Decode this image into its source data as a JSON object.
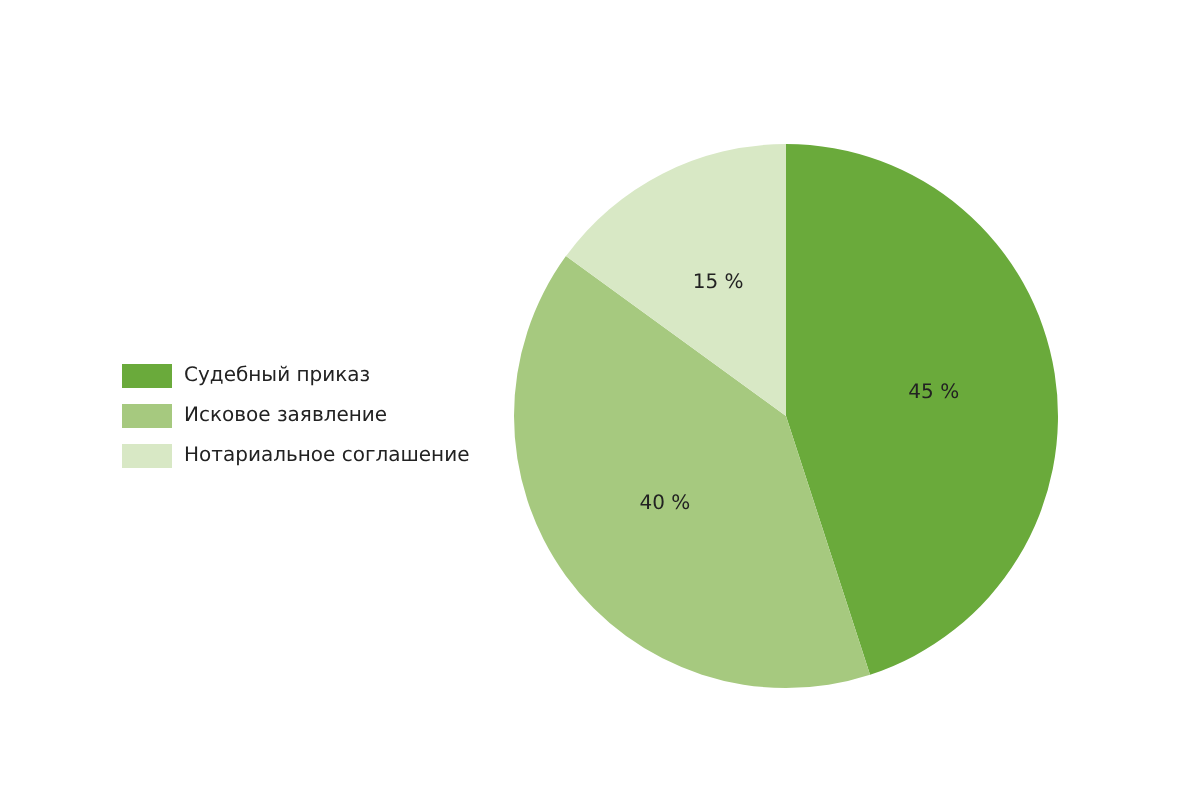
{
  "chart_data": {
    "type": "pie",
    "categories": [
      "Судебный приказ",
      "Исковое заявление",
      "Нотариальное соглашение"
    ],
    "values": [
      45,
      40,
      15
    ],
    "colors": [
      "#6aaa3b",
      "#a6c97f",
      "#d8e8c5"
    ],
    "value_labels": [
      "45 %",
      "40 %",
      "15 %"
    ],
    "legend": "left"
  }
}
